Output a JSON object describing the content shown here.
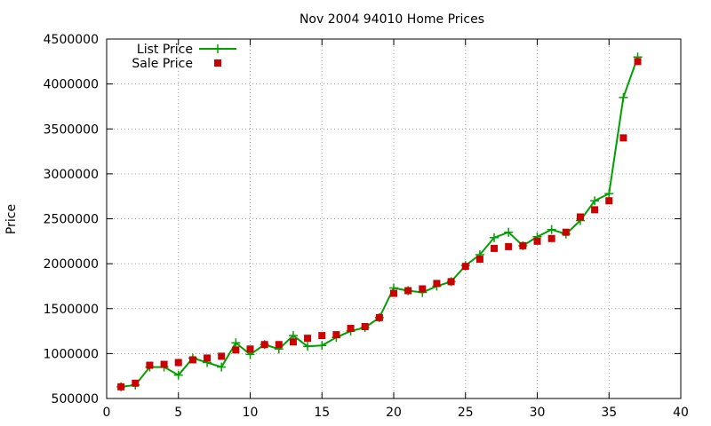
{
  "chart_data": {
    "type": "line",
    "title": "Nov 2004 94010 Home Prices",
    "xlabel": "",
    "ylabel": "Price",
    "xlim": [
      0,
      40
    ],
    "ylim": [
      500000,
      4500000
    ],
    "xticks": [
      0,
      5,
      10,
      15,
      20,
      25,
      30,
      35,
      40
    ],
    "yticks": [
      500000,
      1000000,
      1500000,
      2000000,
      2500000,
      3000000,
      3500000,
      4000000,
      4500000
    ],
    "grid": true,
    "legend_position": "top-left",
    "series": [
      {
        "name": "List Price",
        "style": "line-plus",
        "color": "#00a000",
        "x": [
          1,
          2,
          3,
          4,
          5,
          6,
          7,
          8,
          9,
          10,
          11,
          12,
          13,
          14,
          15,
          16,
          17,
          18,
          19,
          20,
          21,
          22,
          23,
          24,
          25,
          26,
          27,
          28,
          29,
          30,
          31,
          32,
          33,
          34,
          35,
          36,
          37
        ],
        "y": [
          630000,
          650000,
          850000,
          850000,
          760000,
          950000,
          900000,
          850000,
          1120000,
          990000,
          1100000,
          1050000,
          1200000,
          1080000,
          1090000,
          1180000,
          1250000,
          1290000,
          1400000,
          1730000,
          1700000,
          1680000,
          1750000,
          1800000,
          1980000,
          2100000,
          2290000,
          2350000,
          2200000,
          2300000,
          2380000,
          2330000,
          2480000,
          2700000,
          2780000,
          3850000,
          4300000
        ]
      },
      {
        "name": "Sale Price",
        "style": "points-square",
        "color": "#cc0000",
        "x": [
          1,
          2,
          3,
          4,
          5,
          6,
          7,
          8,
          9,
          10,
          11,
          12,
          13,
          14,
          15,
          16,
          17,
          18,
          19,
          20,
          21,
          22,
          23,
          24,
          25,
          26,
          27,
          28,
          29,
          30,
          31,
          32,
          33,
          34,
          35,
          36,
          37
        ],
        "y": [
          630000,
          670000,
          870000,
          880000,
          900000,
          930000,
          950000,
          970000,
          1040000,
          1050000,
          1100000,
          1100000,
          1130000,
          1170000,
          1200000,
          1210000,
          1280000,
          1300000,
          1400000,
          1670000,
          1700000,
          1720000,
          1780000,
          1800000,
          1970000,
          2050000,
          2170000,
          2190000,
          2200000,
          2250000,
          2280000,
          2350000,
          2520000,
          2600000,
          2700000,
          3400000,
          4250000
        ]
      }
    ]
  }
}
